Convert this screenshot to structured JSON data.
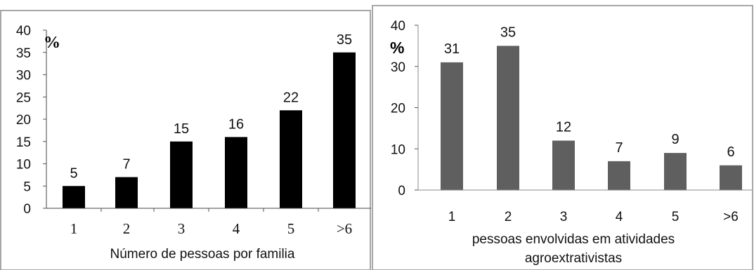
{
  "chart_data": [
    {
      "type": "bar",
      "unit_label": "%",
      "xlabel": "Número  de pessoas por familia",
      "categories": [
        "1",
        "2",
        "3",
        "4",
        "5",
        ">6"
      ],
      "values": [
        5,
        7,
        15,
        16,
        22,
        35
      ],
      "yticks": [
        0,
        5,
        10,
        15,
        20,
        25,
        30,
        35,
        40
      ],
      "ylim": [
        0,
        40
      ],
      "bar_color": "#000000",
      "grid": false
    },
    {
      "type": "bar",
      "unit_label": "%",
      "xlabel": [
        "pessoas envolvidas em atividades",
        "agroextrativistas"
      ],
      "categories": [
        "1",
        "2",
        "3",
        "4",
        "5",
        ">6"
      ],
      "values": [
        31,
        35,
        12,
        7,
        9,
        6
      ],
      "yticks": [
        0,
        10,
        20,
        30,
        40
      ],
      "ylim": [
        0,
        40
      ],
      "bar_color": "#5f5f5f",
      "grid": false
    }
  ]
}
